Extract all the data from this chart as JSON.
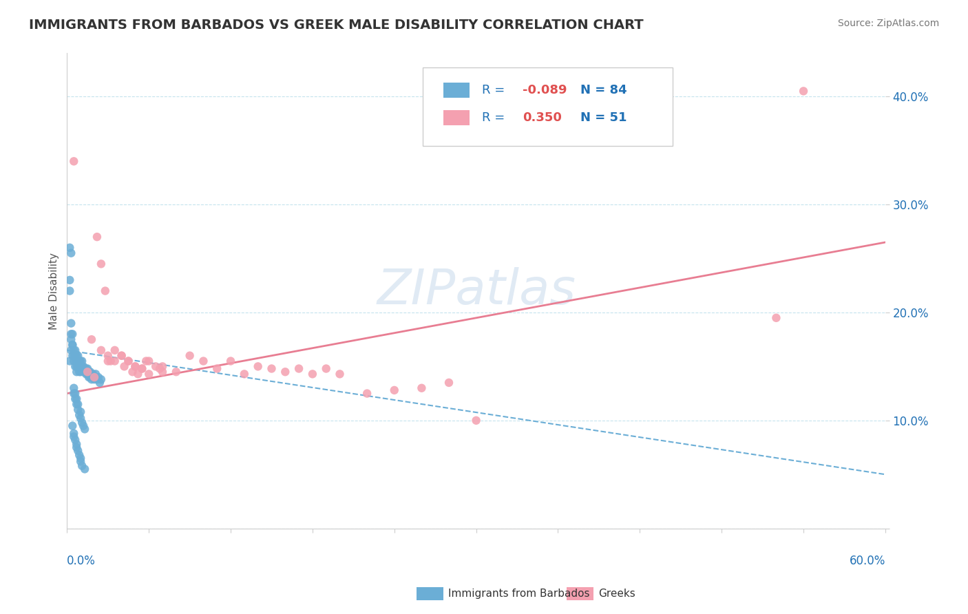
{
  "title": "IMMIGRANTS FROM BARBADOS VS GREEK MALE DISABILITY CORRELATION CHART",
  "source": "Source: ZipAtlas.com",
  "ylabel": "Male Disability",
  "legend_label1": "Immigrants from Barbados",
  "legend_label2": "Greeks",
  "r1": "-0.089",
  "n1": "84",
  "r2": "0.350",
  "n2": "51",
  "color_blue": "#6baed6",
  "color_pink": "#f4a0b0",
  "color_blue_dark": "#2171b5",
  "color_pink_dark": "#e87d92",
  "xlim": [
    0,
    0.6
  ],
  "ylim": [
    0,
    0.44
  ],
  "yticks": [
    0.0,
    0.1,
    0.2,
    0.3,
    0.4
  ],
  "ytick_labels": [
    "",
    "10.0%",
    "20.0%",
    "30.0%",
    "40.0%"
  ],
  "blue_scatter_x": [
    0.002,
    0.003,
    0.003,
    0.004,
    0.004,
    0.005,
    0.005,
    0.005,
    0.006,
    0.006,
    0.006,
    0.007,
    0.007,
    0.007,
    0.007,
    0.008,
    0.008,
    0.008,
    0.009,
    0.009,
    0.009,
    0.01,
    0.01,
    0.01,
    0.011,
    0.011,
    0.011,
    0.012,
    0.012,
    0.013,
    0.013,
    0.014,
    0.014,
    0.015,
    0.015,
    0.016,
    0.016,
    0.017,
    0.017,
    0.018,
    0.018,
    0.019,
    0.019,
    0.02,
    0.02,
    0.021,
    0.022,
    0.023,
    0.024,
    0.025,
    0.002,
    0.002,
    0.003,
    0.003,
    0.004,
    0.004,
    0.005,
    0.005,
    0.006,
    0.006,
    0.007,
    0.007,
    0.008,
    0.008,
    0.009,
    0.01,
    0.01,
    0.011,
    0.012,
    0.013,
    0.002,
    0.003,
    0.004,
    0.005,
    0.005,
    0.006,
    0.007,
    0.007,
    0.008,
    0.009,
    0.01,
    0.01,
    0.011,
    0.013
  ],
  "blue_scatter_y": [
    0.155,
    0.175,
    0.165,
    0.16,
    0.17,
    0.155,
    0.16,
    0.165,
    0.15,
    0.16,
    0.165,
    0.155,
    0.16,
    0.145,
    0.15,
    0.155,
    0.16,
    0.15,
    0.145,
    0.155,
    0.15,
    0.145,
    0.155,
    0.148,
    0.15,
    0.155,
    0.148,
    0.145,
    0.15,
    0.148,
    0.145,
    0.148,
    0.143,
    0.148,
    0.143,
    0.145,
    0.14,
    0.145,
    0.14,
    0.143,
    0.138,
    0.14,
    0.143,
    0.14,
    0.138,
    0.143,
    0.138,
    0.14,
    0.135,
    0.138,
    0.22,
    0.23,
    0.18,
    0.19,
    0.17,
    0.18,
    0.125,
    0.13,
    0.12,
    0.125,
    0.115,
    0.12,
    0.11,
    0.115,
    0.105,
    0.102,
    0.108,
    0.098,
    0.095,
    0.092,
    0.26,
    0.255,
    0.095,
    0.088,
    0.085,
    0.082,
    0.078,
    0.075,
    0.072,
    0.068,
    0.065,
    0.062,
    0.058,
    0.055
  ],
  "pink_scatter_x": [
    0.005,
    0.018,
    0.022,
    0.025,
    0.028,
    0.03,
    0.032,
    0.035,
    0.04,
    0.042,
    0.045,
    0.048,
    0.05,
    0.052,
    0.055,
    0.058,
    0.06,
    0.065,
    0.068,
    0.07,
    0.015,
    0.02,
    0.025,
    0.03,
    0.035,
    0.04,
    0.045,
    0.05,
    0.055,
    0.06,
    0.07,
    0.08,
    0.09,
    0.1,
    0.11,
    0.12,
    0.13,
    0.14,
    0.15,
    0.16,
    0.17,
    0.18,
    0.19,
    0.2,
    0.22,
    0.24,
    0.26,
    0.28,
    0.3,
    0.52,
    0.54
  ],
  "pink_scatter_y": [
    0.34,
    0.175,
    0.27,
    0.245,
    0.22,
    0.16,
    0.155,
    0.165,
    0.16,
    0.15,
    0.155,
    0.145,
    0.15,
    0.143,
    0.148,
    0.155,
    0.143,
    0.15,
    0.148,
    0.145,
    0.145,
    0.14,
    0.165,
    0.155,
    0.155,
    0.16,
    0.155,
    0.15,
    0.148,
    0.155,
    0.15,
    0.145,
    0.16,
    0.155,
    0.148,
    0.155,
    0.143,
    0.15,
    0.148,
    0.145,
    0.148,
    0.143,
    0.148,
    0.143,
    0.125,
    0.128,
    0.13,
    0.135,
    0.1,
    0.195,
    0.405
  ],
  "blue_trend_x": [
    0.0,
    0.6
  ],
  "blue_trend_y": [
    0.165,
    0.05
  ],
  "pink_trend_x": [
    0.0,
    0.6
  ],
  "pink_trend_y": [
    0.125,
    0.265
  ]
}
